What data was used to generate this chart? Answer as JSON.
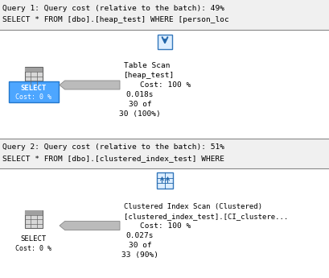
{
  "bg_color": "#ffffff",
  "border_color": "#888888",
  "header_bg": "#f0f0f0",
  "query1_line1": "Query 1: Query cost (relative to the batch): 49%",
  "query1_line2": "SELECT * FROM [dbo].[heap_test] WHERE [person_loc",
  "query2_line1": "Query 2: Query cost (relative to the batch): 51%",
  "query2_line2": "SELECT * FROM [dbo].[clustered_index_test] WHERE",
  "select1_label": "SELECT",
  "select1_cost": "Cost: 0 %",
  "select1_bg": "#4da6ff",
  "select1_border": "#2277cc",
  "select1_text": "#ffffff",
  "scan1_title": "Table Scan",
  "scan1_table": "[heap_test]",
  "scan1_cost": "Cost: 100 %",
  "scan1_time": "0.018s",
  "scan1_rows1": "30 of",
  "scan1_rows2": "30 (100%)",
  "select2_label": "SELECT",
  "select2_cost": "Cost: 0 %",
  "select2_text": "#000000",
  "scan2_title": "Clustered Index Scan (Clustered)",
  "scan2_table": "[clustered_index_test].[CI_clustere...",
  "scan2_cost": "Cost: 100 %",
  "scan2_time": "0.027s",
  "scan2_rows1": "30 of",
  "scan2_rows2": "33 (90%)",
  "mono_font": "monospace",
  "hdr_fs": 6.8,
  "lbl_fs": 6.5,
  "det_fs": 6.8,
  "icon_color": "#cccccc",
  "icon_border": "#666666",
  "arrow_color": "#bbbbbb",
  "arrow_border": "#888888",
  "down_icon_bg": "#ddeeff",
  "down_icon_border": "#3377bb",
  "down_icon_arrow": "#2266aa",
  "ci_icon_bg": "#ddeeff",
  "ci_icon_border": "#3377bb",
  "ci_icon_fg": "#2266aa"
}
